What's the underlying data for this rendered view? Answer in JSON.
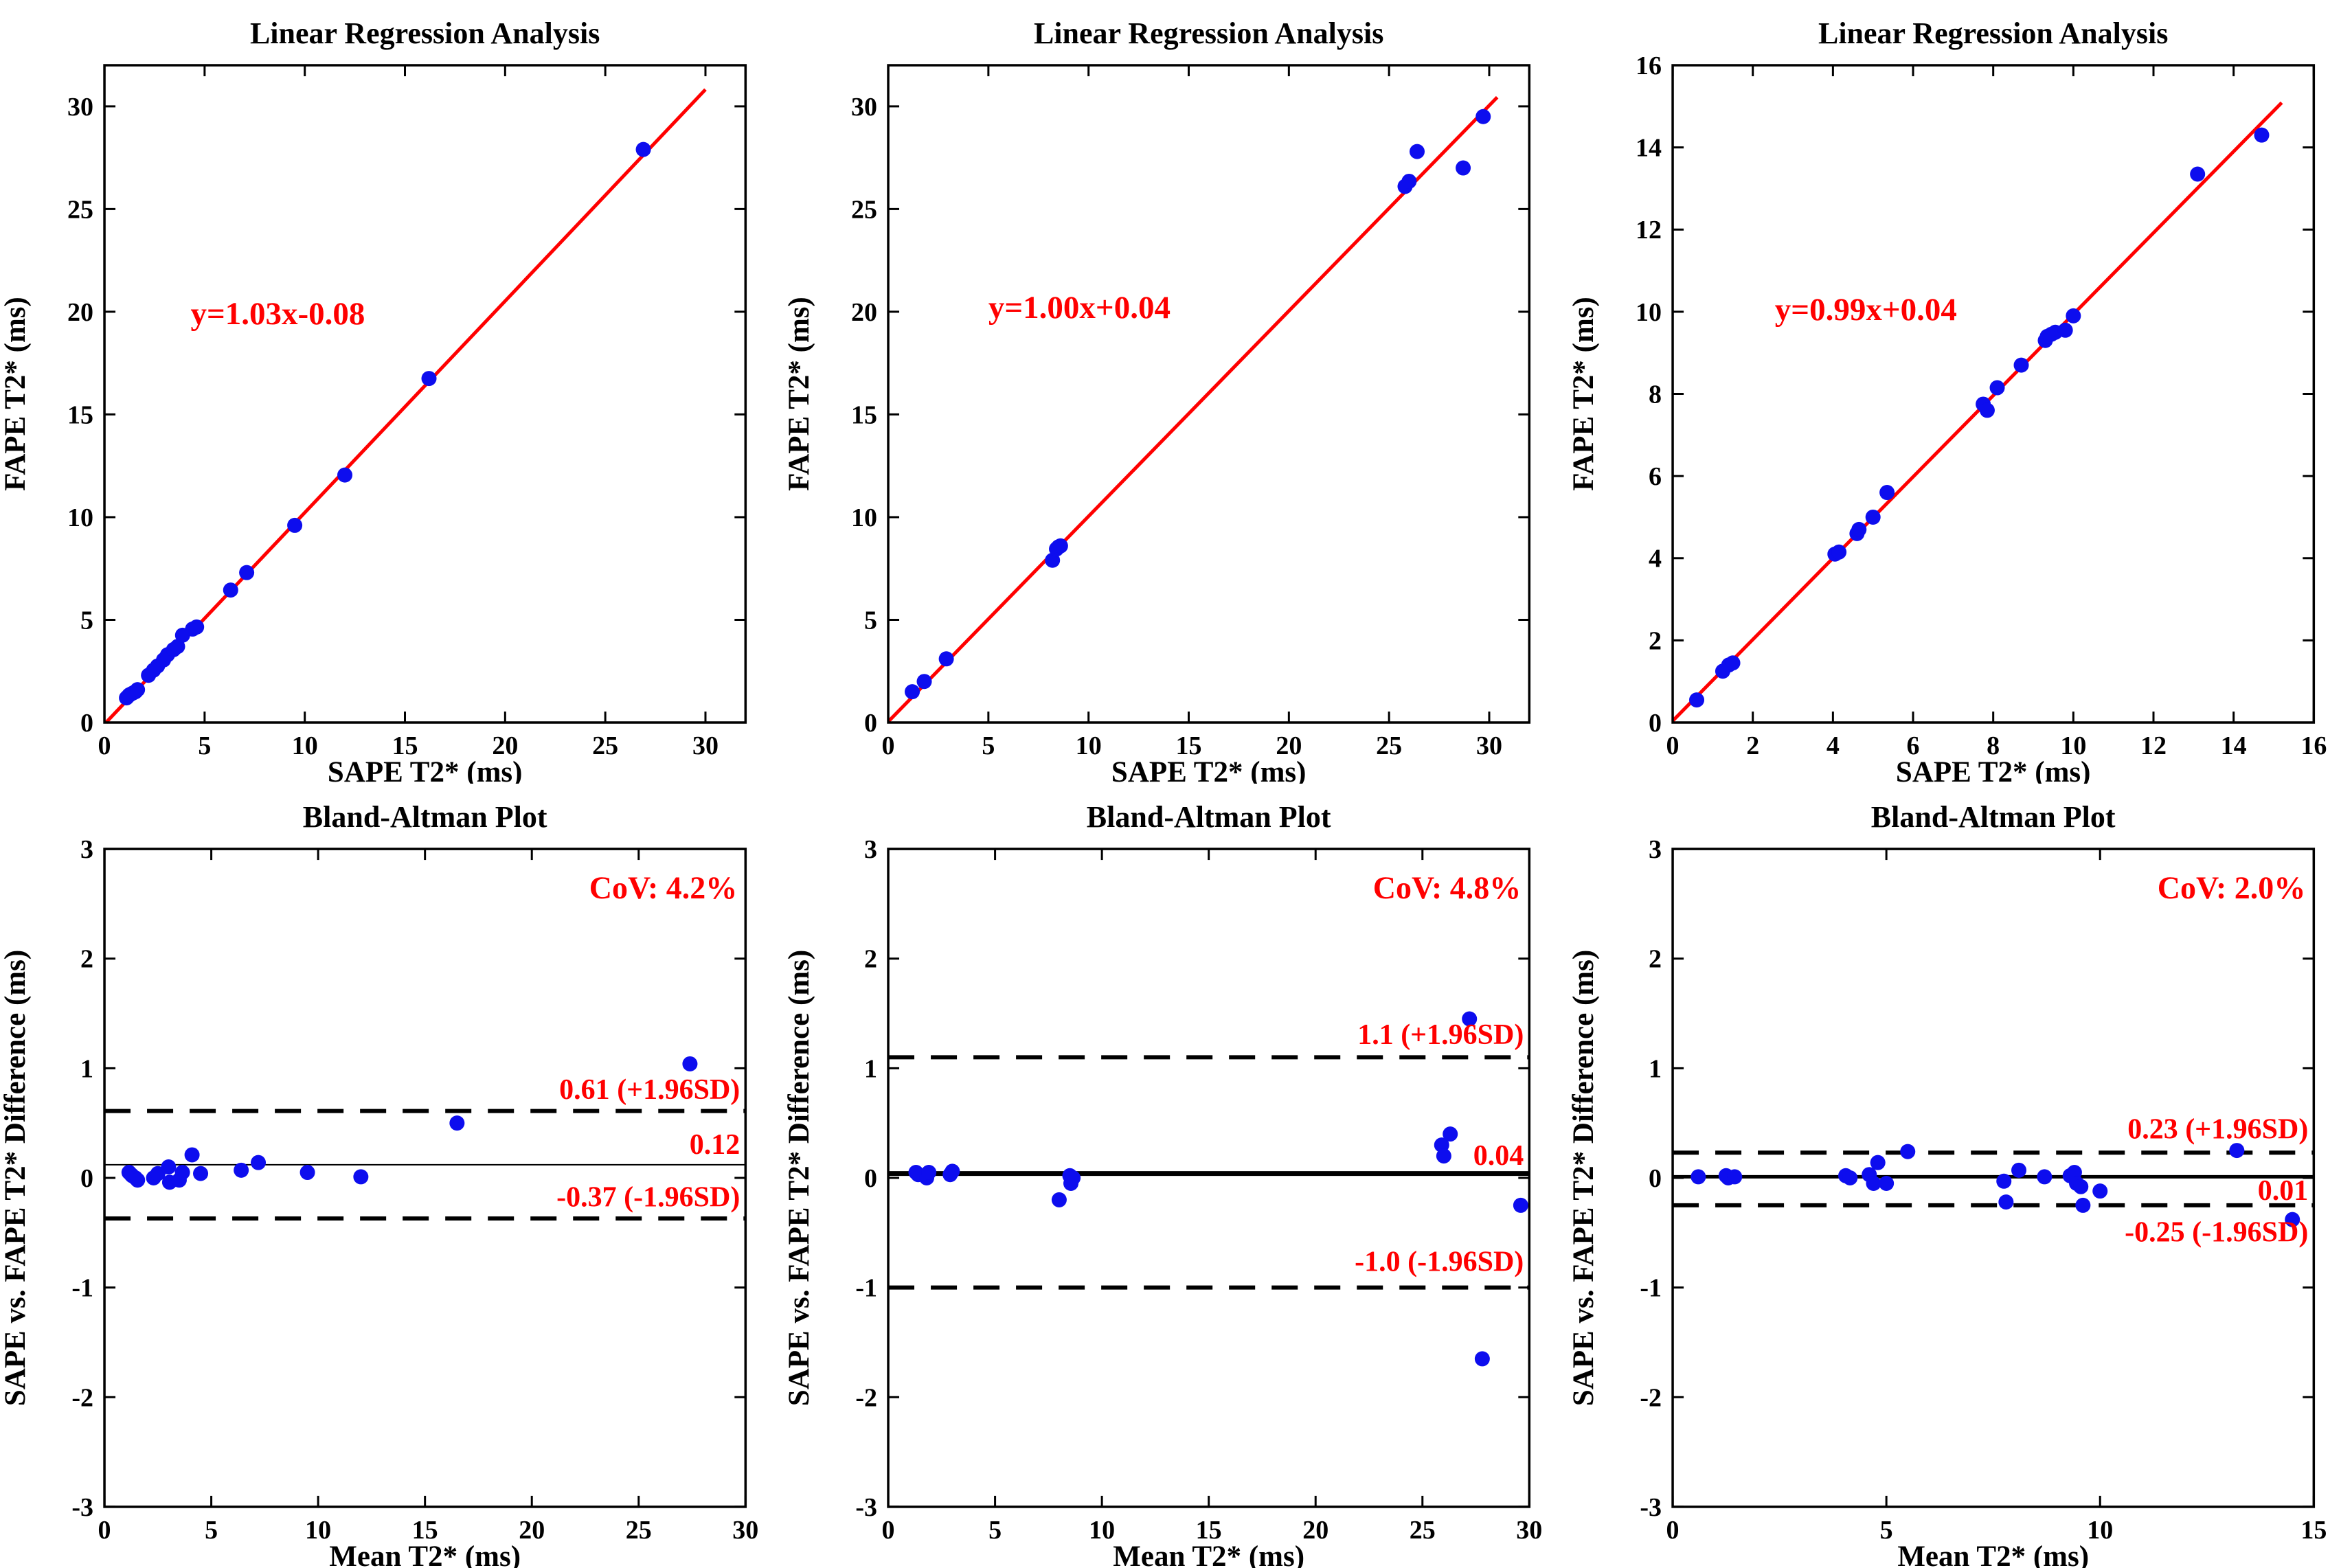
{
  "figure": {
    "background": "#ffffff",
    "marker_color": "#0d0dee",
    "accent_red": "#ff0000",
    "axis_color": "#000000",
    "layout": "2 rows x 3 columns, MATLAB-style axes, bold serif text"
  },
  "chart_data": [
    {
      "type": "scatter",
      "variant": "regression",
      "title": "Linear Regression Analysis",
      "xlabel": "SAPE T2* (ms)",
      "ylabel": "FAPE T2* (ms)",
      "xlim": [
        0,
        32
      ],
      "ylim": [
        0,
        32
      ],
      "xticks": [
        0,
        5,
        10,
        15,
        20,
        25,
        30
      ],
      "yticks": [
        0,
        5,
        10,
        15,
        20,
        25,
        30
      ],
      "equation": "y=1.03x-0.08",
      "equation_pos": [
        4.3,
        19.4
      ],
      "slope": 1.03,
      "intercept": -0.08,
      "line_x": [
        0,
        30
      ],
      "points": [
        [
          1.1,
          1.2
        ],
        [
          1.2,
          1.3
        ],
        [
          1.25,
          1.35
        ],
        [
          1.35,
          1.4
        ],
        [
          1.45,
          1.45
        ],
        [
          1.55,
          1.5
        ],
        [
          1.65,
          1.6
        ],
        [
          2.2,
          2.3
        ],
        [
          2.45,
          2.55
        ],
        [
          2.65,
          2.75
        ],
        [
          2.95,
          3.05
        ],
        [
          3.15,
          3.3
        ],
        [
          3.45,
          3.55
        ],
        [
          3.65,
          3.7
        ],
        [
          3.9,
          4.25
        ],
        [
          4.4,
          4.55
        ],
        [
          4.6,
          4.65
        ],
        [
          6.3,
          6.45
        ],
        [
          7.1,
          7.3
        ],
        [
          9.5,
          9.6
        ],
        [
          12.0,
          12.05
        ],
        [
          16.2,
          16.75
        ],
        [
          26.9,
          27.9
        ]
      ]
    },
    {
      "type": "scatter",
      "variant": "regression",
      "title": "Linear Regression Analysis",
      "xlabel": "SAPE T2* (ms)",
      "ylabel": "FAPE T2* (ms)",
      "xlim": [
        0,
        32
      ],
      "ylim": [
        0,
        32
      ],
      "xticks": [
        0,
        5,
        10,
        15,
        20,
        25,
        30
      ],
      "yticks": [
        0,
        5,
        10,
        15,
        20,
        25,
        30
      ],
      "equation": "y=1.00x+0.04",
      "equation_pos": [
        5.0,
        19.7
      ],
      "slope": 1.0,
      "intercept": 0.04,
      "line_x": [
        0,
        30.4
      ],
      "points": [
        [
          1.2,
          1.5
        ],
        [
          1.8,
          2.0
        ],
        [
          2.9,
          3.1
        ],
        [
          8.2,
          7.9
        ],
        [
          8.4,
          8.45
        ],
        [
          8.5,
          8.55
        ],
        [
          8.6,
          8.6
        ],
        [
          25.8,
          26.1
        ],
        [
          26.0,
          26.35
        ],
        [
          26.4,
          27.8
        ],
        [
          28.7,
          27.0
        ],
        [
          29.7,
          29.5
        ]
      ]
    },
    {
      "type": "scatter",
      "variant": "regression",
      "title": "Linear Regression Analysis",
      "xlabel": "SAPE T2* (ms)",
      "ylabel": "FAPE T2* (ms)",
      "xlim": [
        0,
        16
      ],
      "ylim": [
        0,
        16
      ],
      "xticks": [
        0,
        2,
        4,
        6,
        8,
        10,
        12,
        14,
        16
      ],
      "yticks": [
        0,
        2,
        4,
        6,
        8,
        10,
        12,
        14,
        16
      ],
      "equation": "y=0.99x+0.04",
      "equation_pos": [
        2.55,
        9.8
      ],
      "slope": 0.99,
      "intercept": 0.04,
      "line_x": [
        0,
        15.2
      ],
      "points": [
        [
          0.6,
          0.55
        ],
        [
          1.25,
          1.25
        ],
        [
          1.4,
          1.4
        ],
        [
          1.5,
          1.45
        ],
        [
          4.05,
          4.1
        ],
        [
          4.15,
          4.15
        ],
        [
          4.6,
          4.6
        ],
        [
          4.65,
          4.7
        ],
        [
          5.0,
          5.0
        ],
        [
          5.35,
          5.6
        ],
        [
          7.75,
          7.75
        ],
        [
          7.85,
          7.6
        ],
        [
          8.1,
          8.15
        ],
        [
          8.7,
          8.7
        ],
        [
          9.3,
          9.3
        ],
        [
          9.35,
          9.4
        ],
        [
          9.45,
          9.45
        ],
        [
          9.55,
          9.5
        ],
        [
          9.8,
          9.55
        ],
        [
          10.0,
          9.9
        ],
        [
          13.1,
          13.35
        ],
        [
          14.7,
          14.3
        ]
      ]
    },
    {
      "type": "scatter",
      "variant": "bland_altman",
      "title": "Bland-Altman Plot",
      "xlabel": "Mean T2* (ms)",
      "ylabel": "SAPE vs. FAPE T2* Difference (ms)",
      "xlim": [
        0,
        30
      ],
      "ylim": [
        -3,
        3
      ],
      "xticks": [
        0,
        5,
        10,
        15,
        20,
        25,
        30
      ],
      "yticks": [
        -3,
        -2,
        -1,
        0,
        1,
        2,
        3
      ],
      "mean": 0.12,
      "upper_loa": 0.61,
      "lower_loa": -0.37,
      "mean_label": "0.12",
      "upper_label": "0.61 (+1.96SD)",
      "lower_label": "-0.37 (-1.96SD)",
      "cov_label": "CoV: 4.2%",
      "mean_line_width": 2,
      "label_baselines": {
        "upper": 0.72,
        "mean": 0.22,
        "lower": -0.26,
        "cov": 2.55
      },
      "points": [
        [
          1.15,
          0.05
        ],
        [
          1.25,
          0.03
        ],
        [
          1.3,
          0.02
        ],
        [
          1.45,
          0.0
        ],
        [
          1.55,
          -0.02
        ],
        [
          2.3,
          0.0
        ],
        [
          2.5,
          0.04
        ],
        [
          3.0,
          0.1
        ],
        [
          3.05,
          -0.04
        ],
        [
          3.5,
          -0.02
        ],
        [
          3.65,
          0.05
        ],
        [
          4.1,
          0.21
        ],
        [
          4.5,
          0.04
        ],
        [
          6.4,
          0.07
        ],
        [
          7.2,
          0.14
        ],
        [
          9.5,
          0.05
        ],
        [
          12.0,
          0.01
        ],
        [
          16.5,
          0.5
        ],
        [
          27.4,
          1.04
        ]
      ]
    },
    {
      "type": "scatter",
      "variant": "bland_altman",
      "title": "Bland-Altman Plot",
      "xlabel": "Mean T2* (ms)",
      "ylabel": "SAPE vs. FAPE T2* Difference (ms)",
      "xlim": [
        0,
        30
      ],
      "ylim": [
        -3,
        3
      ],
      "xticks": [
        0,
        5,
        10,
        15,
        20,
        25,
        30
      ],
      "yticks": [
        -3,
        -2,
        -1,
        0,
        1,
        2,
        3
      ],
      "mean": 0.04,
      "upper_loa": 1.1,
      "lower_loa": -1.0,
      "mean_label": "0.04",
      "upper_label": "1.1 (+1.96SD)",
      "lower_label": "-1.0 (-1.96SD)",
      "cov_label": "CoV: 4.8%",
      "mean_line_width": 7,
      "label_baselines": {
        "upper": 1.22,
        "mean": 0.12,
        "lower": -0.85,
        "cov": 2.55
      },
      "points": [
        [
          1.3,
          0.05
        ],
        [
          1.4,
          0.03
        ],
        [
          1.8,
          0.0
        ],
        [
          1.9,
          0.05
        ],
        [
          2.9,
          0.03
        ],
        [
          3.0,
          0.06
        ],
        [
          8.0,
          -0.2
        ],
        [
          8.5,
          0.02
        ],
        [
          8.55,
          -0.05
        ],
        [
          8.65,
          0.0
        ],
        [
          25.9,
          0.3
        ],
        [
          26.0,
          0.2
        ],
        [
          26.3,
          0.4
        ],
        [
          27.2,
          1.45
        ],
        [
          27.8,
          -1.65
        ],
        [
          29.6,
          -0.25
        ]
      ]
    },
    {
      "type": "scatter",
      "variant": "bland_altman",
      "title": "Bland-Altman Plot",
      "xlabel": "Mean T2* (ms)",
      "ylabel": "SAPE vs. FAPE T2* Difference (ms)",
      "xlim": [
        0,
        15
      ],
      "ylim": [
        -3,
        3
      ],
      "xticks": [
        0,
        5,
        10,
        15
      ],
      "yticks": [
        -3,
        -2,
        -1,
        0,
        1,
        2,
        3
      ],
      "mean": 0.01,
      "upper_loa": 0.23,
      "lower_loa": -0.25,
      "mean_label": "0.01",
      "upper_label": "0.23 (+1.96SD)",
      "lower_label": "-0.25 (-1.96SD)",
      "cov_label": "CoV: 2.0%",
      "mean_line_width": 5,
      "label_baselines": {
        "upper": 0.36,
        "mean": -0.2,
        "lower": -0.58,
        "cov": 2.55
      },
      "points": [
        [
          0.6,
          0.01
        ],
        [
          1.25,
          0.02
        ],
        [
          1.3,
          0.0
        ],
        [
          1.45,
          0.01
        ],
        [
          4.05,
          0.02
        ],
        [
          4.15,
          0.0
        ],
        [
          4.6,
          0.03
        ],
        [
          4.7,
          -0.05
        ],
        [
          4.8,
          0.14
        ],
        [
          5.0,
          -0.05
        ],
        [
          5.5,
          0.24
        ],
        [
          7.75,
          -0.03
        ],
        [
          7.8,
          -0.22
        ],
        [
          8.1,
          0.07
        ],
        [
          8.7,
          0.01
        ],
        [
          9.3,
          0.02
        ],
        [
          9.4,
          0.05
        ],
        [
          9.45,
          -0.05
        ],
        [
          9.55,
          -0.08
        ],
        [
          9.6,
          -0.25
        ],
        [
          10.0,
          -0.12
        ],
        [
          13.2,
          0.25
        ],
        [
          14.5,
          -0.38
        ]
      ]
    }
  ]
}
